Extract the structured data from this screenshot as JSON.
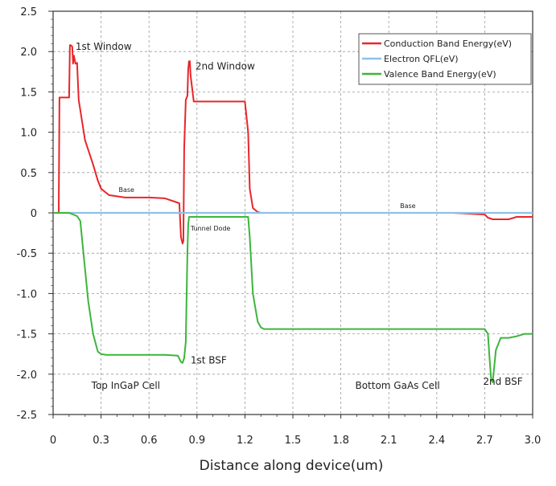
{
  "chart_data": {
    "type": "line",
    "title": "",
    "xlabel": "Distance along device(um)",
    "ylabel": "",
    "xlim": [
      0,
      3.0
    ],
    "ylim": [
      -2.5,
      2.5
    ],
    "xticks": [
      "0",
      "0.3",
      "0.6",
      "0.9",
      "1.2",
      "1.5",
      "1.8",
      "2.1",
      "2.4",
      "2.7",
      "3.0"
    ],
    "yticks": [
      "2.5",
      "2.0",
      "1.5",
      "1.0",
      "0.5",
      "0",
      "-0.5",
      "-1.0",
      "-1.5",
      "-2.0",
      "-2.5"
    ],
    "grid": true,
    "legend_position": "top-right",
    "series": [
      {
        "name": "Conduction Band Energy(eV)",
        "color": "#e8262a",
        "x": [
          0,
          0.035,
          0.04,
          0.045,
          0.1,
          0.105,
          0.11,
          0.12,
          0.125,
          0.13,
          0.14,
          0.15,
          0.16,
          0.2,
          0.25,
          0.28,
          0.3,
          0.35,
          0.45,
          0.6,
          0.7,
          0.79,
          0.8,
          0.81,
          0.815,
          0.82,
          0.83,
          0.84,
          0.845,
          0.85,
          0.855,
          0.86,
          0.88,
          0.95,
          1.05,
          1.2,
          1.22,
          1.23,
          1.25,
          1.28,
          1.3,
          1.5,
          2.0,
          2.5,
          2.7,
          2.72,
          2.75,
          2.78,
          2.85,
          2.9,
          2.95,
          3.0
        ],
        "y": [
          0,
          0,
          1.43,
          1.43,
          1.43,
          2.08,
          2.08,
          2.06,
          1.85,
          1.95,
          1.85,
          1.86,
          1.4,
          0.9,
          0.6,
          0.4,
          0.3,
          0.22,
          0.19,
          0.19,
          0.18,
          0.12,
          -0.3,
          -0.38,
          -0.35,
          0.8,
          1.4,
          1.45,
          1.78,
          1.88,
          1.88,
          1.7,
          1.38,
          1.38,
          1.38,
          1.38,
          1.0,
          0.3,
          0.06,
          0.01,
          0.0,
          0.0,
          0.0,
          0.0,
          -0.02,
          -0.06,
          -0.08,
          -0.08,
          -0.08,
          -0.05,
          -0.05,
          -0.05
        ]
      },
      {
        "name": "Electron QFL(eV)",
        "color": "#8ec0e8",
        "x": [
          0,
          3.0
        ],
        "y": [
          0,
          0
        ]
      },
      {
        "name": "Valence Band Energy(eV)",
        "color": "#3cb53c",
        "x": [
          0,
          0.1,
          0.15,
          0.17,
          0.19,
          0.22,
          0.25,
          0.28,
          0.3,
          0.33,
          0.36,
          0.45,
          0.6,
          0.7,
          0.78,
          0.8,
          0.81,
          0.82,
          0.83,
          0.84,
          0.845,
          0.85,
          0.86,
          0.95,
          1.05,
          1.22,
          1.23,
          1.25,
          1.28,
          1.3,
          1.32,
          1.35,
          1.5,
          2.0,
          2.5,
          2.7,
          2.72,
          2.73,
          2.74,
          2.75,
          2.77,
          2.8,
          2.85,
          2.9,
          2.95,
          3.0
        ],
        "y": [
          0,
          0,
          -0.04,
          -0.1,
          -0.5,
          -1.1,
          -1.5,
          -1.72,
          -1.75,
          -1.76,
          -1.76,
          -1.76,
          -1.76,
          -1.76,
          -1.77,
          -1.85,
          -1.86,
          -1.8,
          -1.6,
          -0.5,
          -0.15,
          -0.05,
          -0.05,
          -0.05,
          -0.05,
          -0.05,
          -0.3,
          -1.0,
          -1.35,
          -1.42,
          -1.44,
          -1.44,
          -1.44,
          -1.44,
          -1.44,
          -1.44,
          -1.5,
          -1.8,
          -2.05,
          -2.1,
          -1.7,
          -1.55,
          -1.55,
          -1.53,
          -1.5,
          -1.5
        ]
      }
    ],
    "annotations": [
      {
        "text": "1st Window",
        "x": 0.14,
        "y": 2.02,
        "size": "normal"
      },
      {
        "text": "2nd Window",
        "x": 0.89,
        "y": 1.78,
        "size": "normal"
      },
      {
        "text": "Base",
        "x": 0.41,
        "y": 0.26,
        "size": "small"
      },
      {
        "text": "Base",
        "x": 2.17,
        "y": 0.06,
        "size": "small"
      },
      {
        "text": "Tunnel Dode",
        "x": 0.86,
        "y": -0.22,
        "size": "small"
      },
      {
        "text": "1st BSF",
        "x": 0.86,
        "y": -1.87,
        "size": "normal"
      },
      {
        "text": "Top InGaP Cell",
        "x": 0.24,
        "y": -2.18,
        "size": "normal"
      },
      {
        "text": "Bottom GaAs Cell",
        "x": 1.89,
        "y": -2.18,
        "size": "normal"
      },
      {
        "text": "2nd BSF",
        "x": 2.69,
        "y": -2.13,
        "size": "normal"
      }
    ]
  }
}
